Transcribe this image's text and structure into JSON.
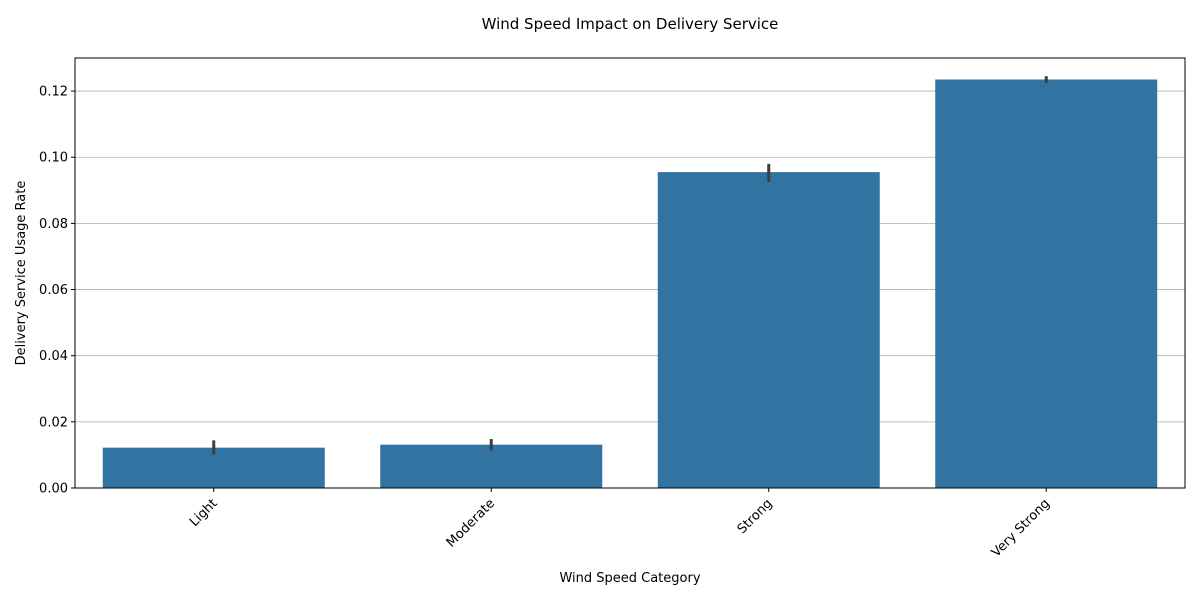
{
  "chart_data": {
    "type": "bar",
    "title": "Wind Speed Impact on Delivery Service",
    "xlabel": "Wind Speed Category",
    "ylabel": "Delivery Service Usage Rate",
    "categories": [
      "Light",
      "Moderate",
      "Strong",
      "Very Strong"
    ],
    "values": [
      0.0122,
      0.0131,
      0.0955,
      0.1235
    ],
    "error_low": [
      0.0101,
      0.0114,
      0.0925,
      0.1225
    ],
    "error_high": [
      0.0144,
      0.0148,
      0.098,
      0.1245
    ],
    "ylim": [
      0,
      0.13
    ],
    "yticks": [
      0.0,
      0.02,
      0.04,
      0.06,
      0.08,
      0.1,
      0.12
    ],
    "ytick_labels": [
      "0.00",
      "0.02",
      "0.04",
      "0.06",
      "0.08",
      "0.10",
      "0.12"
    ],
    "grid": "y",
    "bar_color": "#3274a1",
    "error_color": "#3d3d3d",
    "grid_color": "#b0b0b0"
  }
}
